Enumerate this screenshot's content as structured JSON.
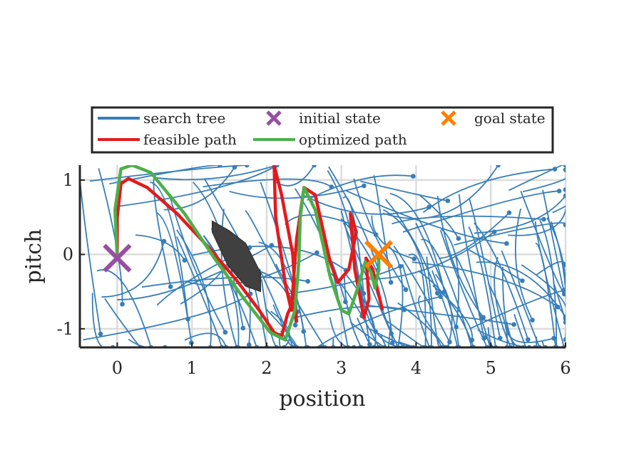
{
  "chart_data": {
    "type": "line",
    "title": "",
    "xlabel": "position",
    "ylabel": "pitch",
    "xlim": [
      -0.5,
      6
    ],
    "ylim": [
      -1.25,
      1.2
    ],
    "xticks": [
      0,
      1,
      2,
      3,
      4,
      5,
      6
    ],
    "xtick_labels": [
      "0",
      "1",
      "2",
      "3",
      "4",
      "5",
      "6"
    ],
    "yticks": [
      -1,
      0,
      1
    ],
    "ytick_labels": [
      "-1",
      "0",
      "1"
    ],
    "grid": true,
    "legend_position": "top",
    "legend": [
      {
        "key": "tree",
        "label": "search tree",
        "marker": "line",
        "color": "#377eb8"
      },
      {
        "key": "init",
        "label": "initial state",
        "marker": "x",
        "color": "#984ea3"
      },
      {
        "key": "goal",
        "label": "goal state",
        "marker": "x",
        "color": "#ff7f00"
      },
      {
        "key": "feasible",
        "label": "feasible path",
        "marker": "line",
        "color": "#e41a1c"
      },
      {
        "key": "optimized",
        "label": "optimized path",
        "marker": "line",
        "color": "#4daf4a"
      }
    ],
    "colors": {
      "tree": "#377eb8",
      "feasible": "#e41a1c",
      "optimized": "#4daf4a",
      "initial": "#984ea3",
      "goal": "#ff7f00",
      "obstacle": "#404040"
    },
    "initial_state": {
      "x": 0.0,
      "y": -0.05
    },
    "goal_state": {
      "x": 3.5,
      "y": 0.0
    },
    "obstacle": [
      [
        1.27,
        0.45
      ],
      [
        1.5,
        0.32
      ],
      [
        1.72,
        0.15
      ],
      [
        1.92,
        -0.25
      ],
      [
        1.92,
        -0.5
      ],
      [
        1.72,
        -0.43
      ],
      [
        1.48,
        -0.15
      ],
      [
        1.27,
        0.3
      ]
    ],
    "feasible_path": [
      [
        0.0,
        -0.05
      ],
      [
        0.0,
        0.5
      ],
      [
        0.05,
        0.95
      ],
      [
        0.15,
        1.02
      ],
      [
        0.4,
        0.9
      ],
      [
        0.8,
        0.55
      ],
      [
        1.2,
        0.12
      ],
      [
        1.6,
        -0.35
      ],
      [
        1.9,
        -0.75
      ],
      [
        2.1,
        -1.05
      ],
      [
        2.2,
        -1.1
      ],
      [
        2.28,
        -0.8
      ],
      [
        2.35,
        -0.65
      ],
      [
        2.4,
        -0.9
      ],
      [
        2.35,
        0.0
      ],
      [
        2.2,
        0.8
      ],
      [
        2.1,
        1.2
      ],
      [
        2.12,
        0.5
      ],
      [
        2.25,
        -0.4
      ],
      [
        2.33,
        -0.75
      ],
      [
        2.4,
        0.2
      ],
      [
        2.5,
        0.9
      ],
      [
        2.65,
        0.8
      ],
      [
        2.85,
        -0.1
      ],
      [
        2.95,
        -0.38
      ],
      [
        3.1,
        -0.2
      ],
      [
        3.2,
        0.3
      ],
      [
        3.12,
        0.55
      ],
      [
        3.18,
        -0.2
      ],
      [
        3.3,
        -0.85
      ],
      [
        3.37,
        -0.6
      ],
      [
        3.33,
        -0.05
      ],
      [
        3.42,
        -0.2
      ],
      [
        3.55,
        -0.75
      ]
    ],
    "optimized_path": [
      [
        0.0,
        -0.05
      ],
      [
        -0.03,
        0.6
      ],
      [
        0.05,
        1.15
      ],
      [
        0.2,
        1.2
      ],
      [
        0.45,
        1.1
      ],
      [
        0.9,
        0.55
      ],
      [
        1.3,
        -0.05
      ],
      [
        1.7,
        -0.6
      ],
      [
        2.05,
        -1.05
      ],
      [
        2.25,
        -1.15
      ],
      [
        2.38,
        -0.75
      ],
      [
        2.43,
        -0.1
      ],
      [
        2.45,
        0.5
      ],
      [
        2.5,
        0.9
      ],
      [
        2.65,
        0.6
      ],
      [
        2.85,
        -0.3
      ],
      [
        3.0,
        -0.75
      ],
      [
        3.1,
        -0.8
      ],
      [
        3.22,
        -0.45
      ],
      [
        3.32,
        -0.1
      ],
      [
        3.4,
        -0.25
      ],
      [
        3.45,
        -0.45
      ],
      [
        3.5,
        -0.2
      ],
      [
        3.5,
        0.0
      ]
    ]
  }
}
